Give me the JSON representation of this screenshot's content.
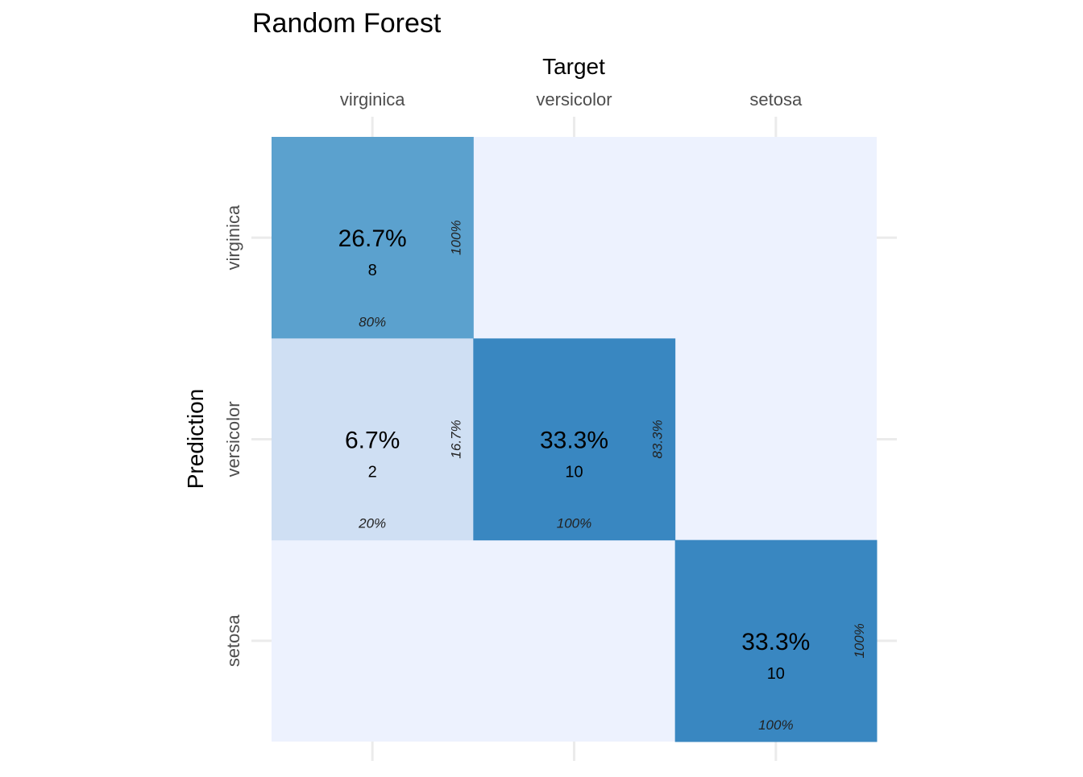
{
  "chart_data": {
    "type": "heatmap",
    "title": "Random Forest",
    "xlabel": "Target",
    "ylabel": "Prediction",
    "x_categories": [
      "virginica",
      "versicolor",
      "setosa"
    ],
    "y_categories": [
      "virginica",
      "versicolor",
      "setosa"
    ],
    "cells": [
      {
        "target": "virginica",
        "prediction": "virginica",
        "percent": "26.7%",
        "count": "8",
        "col_pct": "80%",
        "row_pct": "100%"
      },
      {
        "target": "virginica",
        "prediction": "versicolor",
        "percent": "6.7%",
        "count": "2",
        "col_pct": "20%",
        "row_pct": "16.7%"
      },
      {
        "target": "versicolor",
        "prediction": "versicolor",
        "percent": "33.3%",
        "count": "10",
        "col_pct": "100%",
        "row_pct": "83.3%"
      },
      {
        "target": "setosa",
        "prediction": "setosa",
        "percent": "33.3%",
        "count": "10",
        "col_pct": "100%",
        "row_pct": "100%"
      }
    ],
    "colors": {
      "empty": "#edf2fe",
      "low": "#cfdff3",
      "mid": "#5ba1ce",
      "high": "#3987c1",
      "grid": "#ebebeb",
      "tick_text": "#4d4d4d",
      "text": "#000000"
    },
    "grid": true
  }
}
